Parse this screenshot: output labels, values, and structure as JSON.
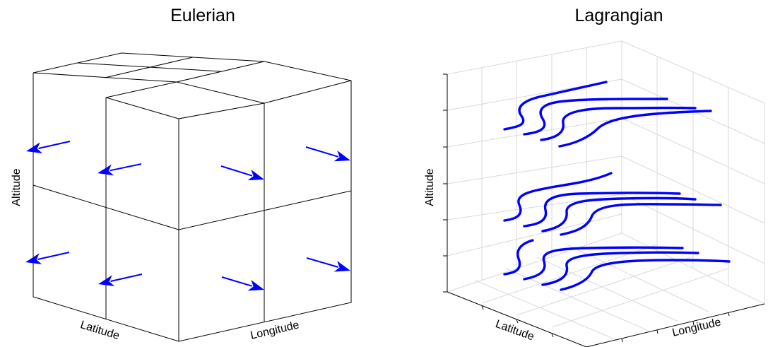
{
  "eulerian": {
    "title": "Eulerian",
    "latitude_label": "Latitude",
    "longitude_label": "Longitude",
    "altitude_label": "Altitude",
    "arrow_count": 8
  },
  "lagrangian": {
    "title": "Lagrangian",
    "latitude_label": "Latitude",
    "longitude_label": "Longitude",
    "altitude_label": "Altitude",
    "trajectory_layers": 3,
    "trajectories_per_layer": 4
  },
  "colors": {
    "arrow": "#0000ff",
    "trajectory": "#0000ff",
    "edge": "#000000",
    "grid": "#d9d9d9"
  }
}
